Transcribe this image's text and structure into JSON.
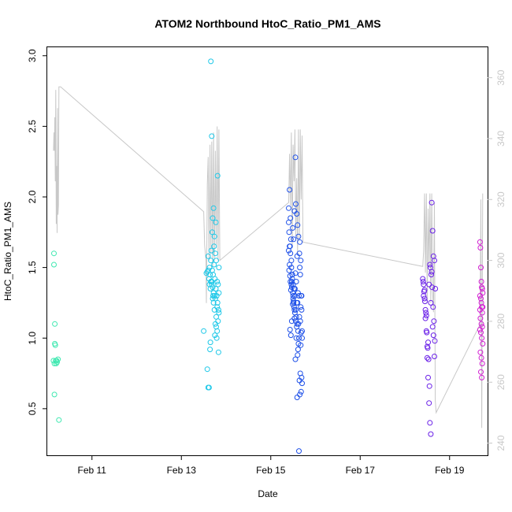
{
  "chart_data": {
    "type": "scatter",
    "title": "ATOM2 Northbound HtoC_Ratio_PM1_AMS",
    "xlabel": "Date",
    "ylabel": "HtoC_Ratio_PM1_AMS",
    "x_ticks": [
      "Feb 11",
      "Feb 13",
      "Feb 15",
      "Feb 17",
      "Feb 19"
    ],
    "x_tick_days": [
      11,
      13,
      15,
      17,
      19
    ],
    "xlim": [
      10.0,
      19.85
    ],
    "ylim": [
      0.17,
      3.06
    ],
    "y_ticks": [
      0.5,
      1.0,
      1.5,
      2.0,
      2.5,
      3.0
    ],
    "y_tick_labels": [
      "0.5",
      "1.0",
      "1.5",
      "2.0",
      "2.5",
      "3.0"
    ],
    "y2_ticks": [
      240,
      260,
      280,
      300,
      320,
      340,
      360
    ],
    "y2_lim": [
      236,
      370
    ],
    "y2_line_color": "#c8c8c8",
    "grid": false,
    "legend": "none",
    "series": [
      {
        "color": "#3ee8b0",
        "x": [
          10.15,
          10.15,
          10.17,
          10.17,
          10.18,
          10.19,
          10.2,
          10.22,
          10.24,
          10.26,
          10.14,
          10.16,
          10.21,
          10.16
        ],
        "y": [
          1.6,
          1.52,
          1.1,
          0.96,
          0.95,
          0.84,
          0.82,
          0.83,
          0.85,
          0.42,
          0.84,
          0.82,
          0.84,
          0.6
        ]
      },
      {
        "color": "#1ec8e8",
        "x": [
          13.5,
          13.58,
          13.6,
          13.62,
          13.65,
          13.66,
          13.68,
          13.7,
          13.72,
          13.74,
          13.76,
          13.78,
          13.8,
          13.82,
          13.84,
          13.63,
          13.67,
          13.69,
          13.71,
          13.73,
          13.75,
          13.77,
          13.79,
          13.81,
          13.83,
          13.64,
          13.68,
          13.72,
          13.76,
          13.8,
          13.84,
          13.6,
          13.66,
          13.7,
          13.74,
          13.78,
          13.82,
          13.62,
          13.7,
          13.76,
          13.83,
          13.58,
          13.65,
          13.72,
          13.8,
          13.68,
          13.74,
          13.78,
          13.56,
          13.63,
          13.71,
          13.79,
          13.66,
          13.73,
          13.81,
          13.6,
          13.69,
          13.77,
          13.84,
          13.64,
          13.75
        ],
        "y": [
          1.05,
          0.78,
          0.65,
          0.65,
          0.97,
          2.96,
          2.43,
          1.85,
          1.92,
          1.72,
          1.6,
          1.55,
          1.4,
          1.38,
          1.32,
          1.5,
          1.62,
          1.48,
          1.45,
          1.52,
          1.42,
          1.35,
          1.3,
          1.25,
          1.2,
          1.45,
          1.38,
          1.32,
          1.28,
          1.22,
          1.18,
          1.48,
          1.4,
          1.36,
          1.3,
          1.15,
          1.12,
          1.42,
          1.28,
          1.1,
          0.9,
          1.47,
          1.35,
          1.25,
          1.05,
          1.4,
          1.2,
          1.08,
          1.46,
          1.38,
          1.3,
          1.0,
          1.55,
          1.65,
          2.15,
          1.58,
          1.75,
          1.82,
          1.5,
          0.92,
          1.02
        ]
      },
      {
        "color": "#1e50e8",
        "x": [
          15.4,
          15.42,
          15.44,
          15.45,
          15.46,
          15.48,
          15.5,
          15.52,
          15.54,
          15.55,
          15.56,
          15.58,
          15.6,
          15.62,
          15.64,
          15.65,
          15.66,
          15.68,
          15.7,
          15.41,
          15.43,
          15.47,
          15.49,
          15.51,
          15.53,
          15.57,
          15.59,
          15.61,
          15.63,
          15.67,
          15.69,
          15.4,
          15.44,
          15.48,
          15.52,
          15.56,
          15.6,
          15.64,
          15.68,
          15.42,
          15.46,
          15.5,
          15.54,
          15.58,
          15.62,
          15.66,
          15.7,
          15.41,
          15.45,
          15.49,
          15.53,
          15.57,
          15.61,
          15.65,
          15.69,
          15.43,
          15.47,
          15.51,
          15.55,
          15.59,
          15.63,
          15.67,
          15.4,
          15.44,
          15.5,
          15.56,
          15.62,
          15.68,
          15.46,
          15.52,
          15.58,
          15.64,
          15.7,
          15.42,
          15.48,
          15.54,
          15.6,
          15.66,
          15.45,
          15.51,
          15.57,
          15.63,
          15.69,
          15.43,
          15.49,
          15.55,
          15.61,
          15.67,
          15.47,
          15.53,
          15.59,
          15.65
        ],
        "y": [
          1.92,
          2.05,
          1.85,
          1.7,
          1.55,
          1.42,
          1.38,
          1.35,
          1.3,
          2.28,
          1.95,
          1.88,
          1.8,
          1.72,
          1.6,
          1.5,
          1.45,
          1.3,
          1.05,
          1.75,
          1.65,
          1.4,
          1.32,
          1.25,
          1.2,
          1.15,
          1.1,
          1.05,
          1.0,
          0.95,
          0.72,
          1.82,
          1.6,
          1.45,
          1.22,
          1.12,
          0.88,
          0.7,
          0.62,
          1.52,
          1.38,
          1.28,
          1.18,
          1.08,
          0.96,
          0.75,
          0.68,
          1.48,
          1.34,
          1.24,
          1.14,
          1.0,
          0.92,
          0.6,
          1.3,
          1.44,
          1.36,
          1.26,
          0.85,
          0.58,
          0.2,
          1.55,
          1.62,
          1.4,
          1.3,
          1.2,
          1.1,
          1.04,
          1.5,
          1.35,
          1.25,
          1.15,
          1.0,
          1.65,
          1.45,
          1.35,
          1.25,
          1.12,
          1.02,
          1.7,
          1.4,
          1.3,
          1.2,
          1.06,
          1.78,
          1.46,
          1.32,
          1.22,
          1.12,
          1.9,
          1.58,
          1.68
        ],
        "y_extra_note": ""
      },
      {
        "color": "#6a20e8",
        "x": [
          18.4,
          18.42,
          18.44,
          18.46,
          18.48,
          18.5,
          18.52,
          18.54,
          18.56,
          18.58,
          18.6,
          18.62,
          18.64,
          18.66,
          18.68,
          18.41,
          18.43,
          18.45,
          18.47,
          18.49,
          18.51,
          18.53,
          18.55,
          18.57,
          18.59,
          18.61,
          18.63,
          18.65,
          18.67,
          18.42,
          18.46,
          18.5,
          18.54,
          18.58,
          18.62,
          18.66,
          18.44,
          18.48,
          18.52,
          18.56,
          18.6,
          18.64
        ],
        "y": [
          1.42,
          1.38,
          1.28,
          1.2,
          1.05,
          0.94,
          0.72,
          0.54,
          0.4,
          0.32,
          1.96,
          1.76,
          1.58,
          1.55,
          1.35,
          1.4,
          1.33,
          1.26,
          1.18,
          1.04,
          0.93,
          0.85,
          0.66,
          1.5,
          1.45,
          1.36,
          1.22,
          1.12,
          0.98,
          1.3,
          1.14,
          0.86,
          1.38,
          1.25,
          1.08,
          0.87,
          1.34,
          1.16,
          0.97,
          1.52,
          1.47,
          1.02
        ]
      },
      {
        "color": "#d21ed2",
        "x": [
          19.68,
          19.69,
          19.7,
          19.71,
          19.72,
          19.73,
          19.74,
          19.68,
          19.7,
          19.72,
          19.74,
          19.69,
          19.71,
          19.73,
          19.68,
          19.7,
          19.72,
          19.74,
          19.69,
          19.71,
          19.73,
          19.7,
          19.72,
          19.68,
          19.71,
          19.73
        ],
        "y": [
          1.68,
          1.64,
          1.5,
          1.4,
          1.36,
          1.35,
          1.32,
          1.3,
          1.28,
          1.22,
          1.22,
          1.14,
          1.1,
          1.08,
          1.06,
          1.04,
          1.0,
          0.96,
          0.9,
          0.86,
          0.82,
          0.76,
          0.72,
          1.2,
          1.25,
          1.18
        ]
      }
    ],
    "secondary_line": {
      "axis": "right",
      "color": "#c8c8c8",
      "x": [
        10.14,
        10.15,
        10.16,
        10.17,
        10.18,
        10.19,
        10.2,
        10.21,
        10.22,
        10.23,
        10.24,
        10.25,
        10.26,
        10.3,
        13.5,
        13.52,
        13.55,
        13.56,
        13.58,
        13.6,
        13.62,
        13.64,
        13.66,
        13.68,
        13.7,
        13.72,
        13.74,
        13.76,
        13.78,
        13.8,
        13.82,
        13.84,
        13.86,
        15.4,
        15.42,
        15.44,
        15.46,
        15.48,
        15.5,
        15.52,
        15.54,
        15.56,
        15.58,
        15.6,
        15.62,
        15.64,
        15.66,
        15.68,
        15.7,
        15.72,
        18.4,
        18.42,
        18.44,
        18.46,
        18.48,
        18.5,
        18.52,
        18.54,
        18.56,
        18.58,
        18.6,
        18.62,
        18.64,
        18.66,
        18.68,
        18.7,
        19.68,
        19.7,
        19.72,
        19.74
      ],
      "y": [
        336,
        342,
        336,
        347,
        326,
        356,
        312,
        331,
        309,
        350,
        315,
        318,
        357,
        357,
        316,
        305,
        300,
        286,
        325,
        334,
        300,
        338,
        302,
        339,
        298,
        342,
        300,
        336,
        304,
        344,
        300,
        343,
        300,
        319,
        335,
        318,
        342,
        304,
        338,
        326,
        343,
        308,
        327,
        302,
        343,
        307,
        343,
        320,
        341,
        306,
        298,
        303,
        322,
        296,
        322,
        286,
        317,
        298,
        322,
        286,
        322,
        290,
        283,
        319,
        254,
        250,
        279,
        320,
        245,
        322
      ]
    }
  }
}
